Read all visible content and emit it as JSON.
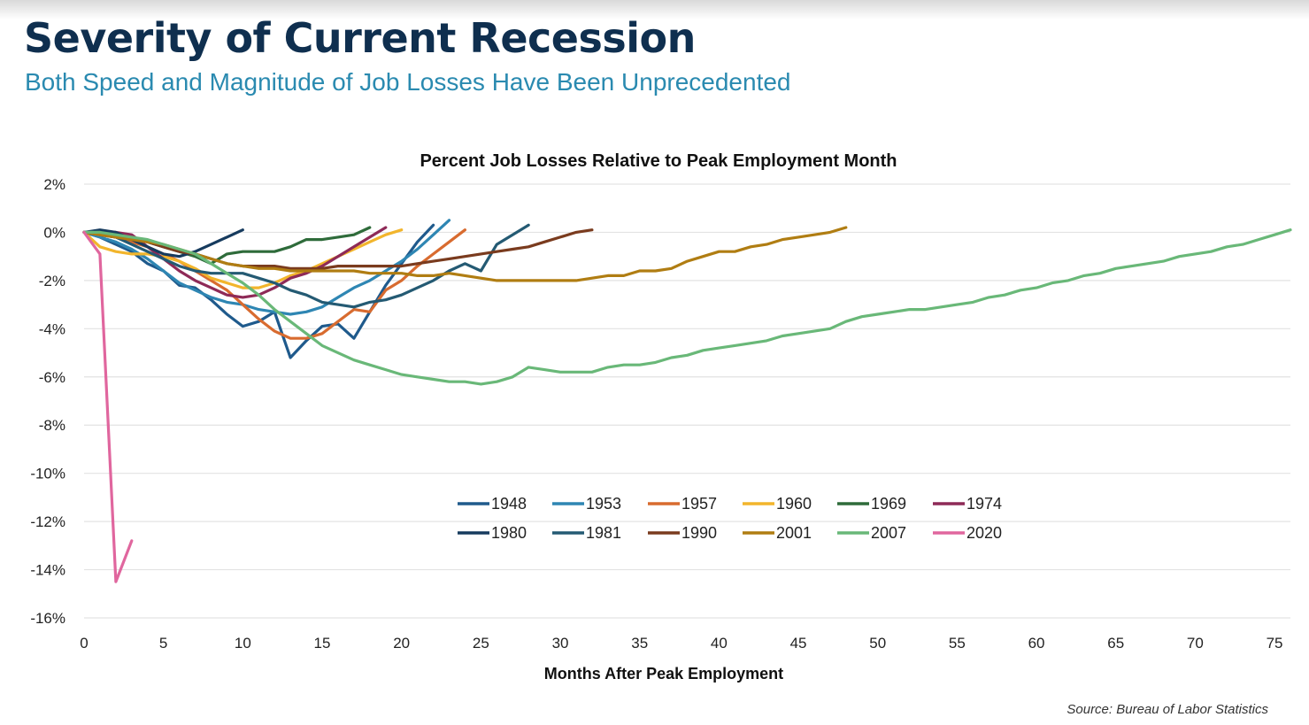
{
  "slide": {
    "title": "Severity of Current Recession",
    "subtitle": "Both Speed and Magnitude of Job Losses Have Been Unprecedented",
    "source": "Source: Bureau of Labor Statistics"
  },
  "colors": {
    "title": "#0f2f4f",
    "subtitle": "#2a8ab0",
    "grid": "#e3e3e3"
  },
  "chart_data": {
    "type": "line",
    "title": "Percent Job Losses Relative to Peak Employment Month",
    "xlabel": "Months After Peak Employment",
    "ylabel": "",
    "xlim": [
      0,
      76
    ],
    "ylim": [
      -16,
      2
    ],
    "xticks": [
      0,
      5,
      10,
      15,
      20,
      25,
      30,
      35,
      40,
      45,
      50,
      55,
      60,
      65,
      70,
      75
    ],
    "xtick_labels": [
      "0",
      "5",
      "10",
      "15",
      "20",
      "25",
      "30",
      "35",
      "40",
      "45",
      "50",
      "55",
      "60",
      "65",
      "70",
      "75"
    ],
    "yticks": [
      2,
      0,
      -2,
      -4,
      -6,
      -8,
      -10,
      -12,
      -14,
      -16
    ],
    "ytick_labels": [
      "2%",
      "0%",
      "-2%",
      "-4%",
      "-6%",
      "-8%",
      "-10%",
      "-12%",
      "-14%",
      "-16%"
    ],
    "grid": "horizontal",
    "legend_position": "lower-center",
    "series": [
      {
        "name": "1948",
        "color": "#1f5a8c",
        "x": [
          0,
          1,
          2,
          3,
          4,
          5,
          6,
          7,
          8,
          9,
          10,
          11,
          12,
          13,
          14,
          15,
          16,
          17,
          18,
          19,
          20,
          21,
          22
        ],
        "y": [
          0,
          -0.2,
          -0.5,
          -0.8,
          -1.3,
          -1.6,
          -2.2,
          -2.3,
          -2.8,
          -3.4,
          -3.9,
          -3.7,
          -3.3,
          -5.2,
          -4.5,
          -3.9,
          -3.8,
          -4.4,
          -3.3,
          -2.2,
          -1.3,
          -0.4,
          0.3
        ]
      },
      {
        "name": "1953",
        "color": "#2e86b3",
        "x": [
          0,
          1,
          2,
          3,
          4,
          5,
          6,
          7,
          8,
          9,
          10,
          11,
          12,
          13,
          14,
          15,
          16,
          17,
          18,
          19,
          20,
          21,
          22,
          23
        ],
        "y": [
          0,
          -0.2,
          -0.4,
          -0.7,
          -1.1,
          -1.6,
          -2.1,
          -2.4,
          -2.7,
          -2.9,
          -3.0,
          -3.2,
          -3.3,
          -3.4,
          -3.3,
          -3.1,
          -2.7,
          -2.3,
          -2.0,
          -1.6,
          -1.2,
          -0.7,
          -0.1,
          0.5
        ]
      },
      {
        "name": "1957",
        "color": "#d86b2f",
        "x": [
          0,
          1,
          2,
          3,
          4,
          5,
          6,
          7,
          8,
          9,
          10,
          11,
          12,
          13,
          14,
          15,
          16,
          17,
          18,
          19,
          20,
          21,
          22,
          23,
          24
        ],
        "y": [
          0,
          -0.1,
          -0.2,
          -0.4,
          -0.6,
          -0.9,
          -1.2,
          -1.6,
          -2.0,
          -2.4,
          -3.0,
          -3.6,
          -4.1,
          -4.4,
          -4.4,
          -4.2,
          -3.7,
          -3.2,
          -3.3,
          -2.4,
          -2.0,
          -1.4,
          -0.9,
          -0.4,
          0.1
        ]
      },
      {
        "name": "1960",
        "color": "#f2b52c",
        "x": [
          0,
          1,
          2,
          3,
          4,
          5,
          6,
          7,
          8,
          9,
          10,
          11,
          12,
          13,
          14,
          15,
          16,
          17,
          18,
          19,
          20
        ],
        "y": [
          0,
          -0.6,
          -0.8,
          -0.9,
          -0.9,
          -1.0,
          -1.2,
          -1.5,
          -1.9,
          -2.1,
          -2.3,
          -2.3,
          -2.1,
          -1.8,
          -1.6,
          -1.3,
          -1.0,
          -0.7,
          -0.4,
          -0.1,
          0.1
        ]
      },
      {
        "name": "1969",
        "color": "#2e6b3a",
        "x": [
          0,
          1,
          2,
          3,
          4,
          5,
          6,
          7,
          8,
          9,
          10,
          11,
          12,
          13,
          14,
          15,
          16,
          17,
          18
        ],
        "y": [
          0,
          -0.1,
          -0.2,
          -0.3,
          -0.4,
          -0.6,
          -0.8,
          -1.0,
          -1.3,
          -0.9,
          -0.8,
          -0.8,
          -0.8,
          -0.6,
          -0.3,
          -0.3,
          -0.2,
          -0.1,
          0.2
        ]
      },
      {
        "name": "1974",
        "color": "#8e2a57",
        "x": [
          0,
          1,
          2,
          3,
          4,
          5,
          6,
          7,
          8,
          9,
          10,
          11,
          12,
          13,
          14,
          15,
          16,
          17,
          18,
          19
        ],
        "y": [
          0,
          0,
          0,
          -0.1,
          -0.6,
          -1.1,
          -1.6,
          -2.0,
          -2.3,
          -2.6,
          -2.7,
          -2.6,
          -2.3,
          -1.9,
          -1.7,
          -1.4,
          -1.0,
          -0.6,
          -0.2,
          0.2
        ]
      },
      {
        "name": "1980",
        "color": "#163b5e",
        "x": [
          0,
          1,
          2,
          3,
          4,
          5,
          6,
          7,
          8,
          9,
          10
        ],
        "y": [
          0,
          0.1,
          0,
          -0.3,
          -0.6,
          -0.9,
          -1.0,
          -0.8,
          -0.5,
          -0.2,
          0.1
        ]
      },
      {
        "name": "1981",
        "color": "#245a73",
        "x": [
          0,
          1,
          2,
          3,
          4,
          5,
          6,
          7,
          8,
          9,
          10,
          11,
          12,
          13,
          14,
          15,
          16,
          17,
          18,
          19,
          20,
          21,
          22,
          23,
          24,
          25,
          26,
          27,
          28
        ],
        "y": [
          0,
          0,
          -0.2,
          -0.5,
          -0.8,
          -1.1,
          -1.4,
          -1.6,
          -1.7,
          -1.7,
          -1.7,
          -1.9,
          -2.1,
          -2.4,
          -2.6,
          -2.9,
          -3.0,
          -3.1,
          -2.9,
          -2.8,
          -2.6,
          -2.3,
          -2.0,
          -1.6,
          -1.3,
          -1.6,
          -0.5,
          -0.1,
          0.3
        ]
      },
      {
        "name": "1990",
        "color": "#7a3b1e",
        "x": [
          0,
          1,
          2,
          3,
          4,
          5,
          6,
          7,
          8,
          9,
          10,
          11,
          12,
          13,
          14,
          15,
          16,
          17,
          18,
          19,
          20,
          21,
          22,
          23,
          24,
          25,
          26,
          27,
          28,
          29,
          30,
          31,
          32
        ],
        "y": [
          0,
          -0.1,
          -0.2,
          -0.3,
          -0.4,
          -0.6,
          -0.8,
          -0.9,
          -1.1,
          -1.3,
          -1.4,
          -1.4,
          -1.4,
          -1.5,
          -1.5,
          -1.5,
          -1.4,
          -1.4,
          -1.4,
          -1.4,
          -1.4,
          -1.3,
          -1.2,
          -1.1,
          -1.0,
          -0.9,
          -0.8,
          -0.7,
          -0.6,
          -0.4,
          -0.2,
          0.0,
          0.1
        ]
      },
      {
        "name": "2001",
        "color": "#b07d12",
        "x": [
          0,
          1,
          2,
          3,
          4,
          5,
          6,
          7,
          8,
          9,
          10,
          11,
          12,
          13,
          14,
          15,
          16,
          17,
          18,
          19,
          20,
          21,
          22,
          23,
          24,
          25,
          26,
          27,
          28,
          29,
          30,
          31,
          32,
          33,
          34,
          35,
          36,
          37,
          38,
          39,
          40,
          41,
          42,
          43,
          44,
          45,
          46,
          47,
          48
        ],
        "y": [
          0,
          -0.1,
          -0.2,
          -0.3,
          -0.4,
          -0.5,
          -0.7,
          -0.9,
          -1.1,
          -1.3,
          -1.4,
          -1.5,
          -1.5,
          -1.6,
          -1.6,
          -1.6,
          -1.6,
          -1.6,
          -1.7,
          -1.7,
          -1.7,
          -1.8,
          -1.8,
          -1.7,
          -1.8,
          -1.9,
          -2.0,
          -2.0,
          -2.0,
          -2.0,
          -2.0,
          -2.0,
          -1.9,
          -1.8,
          -1.8,
          -1.6,
          -1.6,
          -1.5,
          -1.2,
          -1.0,
          -0.8,
          -0.8,
          -0.6,
          -0.5,
          -0.3,
          -0.2,
          -0.1,
          0.0,
          0.2
        ]
      },
      {
        "name": "2007",
        "color": "#69b878",
        "x": [
          0,
          1,
          2,
          3,
          4,
          5,
          6,
          7,
          8,
          9,
          10,
          11,
          12,
          13,
          14,
          15,
          16,
          17,
          18,
          19,
          20,
          21,
          22,
          23,
          24,
          25,
          26,
          27,
          28,
          29,
          30,
          31,
          32,
          33,
          34,
          35,
          36,
          37,
          38,
          39,
          40,
          41,
          42,
          43,
          44,
          45,
          46,
          47,
          48,
          49,
          50,
          51,
          52,
          53,
          54,
          55,
          56,
          57,
          58,
          59,
          60,
          61,
          62,
          63,
          64,
          65,
          66,
          67,
          68,
          69,
          70,
          71,
          72,
          73,
          74,
          75,
          76
        ],
        "y": [
          0,
          0,
          -0.1,
          -0.2,
          -0.3,
          -0.5,
          -0.7,
          -0.9,
          -1.3,
          -1.7,
          -2.1,
          -2.6,
          -3.2,
          -3.7,
          -4.2,
          -4.7,
          -5.0,
          -5.3,
          -5.5,
          -5.7,
          -5.9,
          -6.0,
          -6.1,
          -6.2,
          -6.2,
          -6.3,
          -6.2,
          -6.0,
          -5.6,
          -5.7,
          -5.8,
          -5.8,
          -5.8,
          -5.6,
          -5.5,
          -5.5,
          -5.4,
          -5.2,
          -5.1,
          -4.9,
          -4.8,
          -4.7,
          -4.6,
          -4.5,
          -4.3,
          -4.2,
          -4.1,
          -4.0,
          -3.7,
          -3.5,
          -3.4,
          -3.3,
          -3.2,
          -3.2,
          -3.1,
          -3.0,
          -2.9,
          -2.7,
          -2.6,
          -2.4,
          -2.3,
          -2.1,
          -2.0,
          -1.8,
          -1.7,
          -1.5,
          -1.4,
          -1.3,
          -1.2,
          -1.0,
          -0.9,
          -0.8,
          -0.6,
          -0.5,
          -0.3,
          -0.1,
          0.1
        ]
      },
      {
        "name": "2020",
        "color": "#e0669e",
        "x": [
          0,
          1,
          2,
          3
        ],
        "y": [
          0,
          -0.9,
          -14.5,
          -12.8
        ]
      }
    ]
  }
}
